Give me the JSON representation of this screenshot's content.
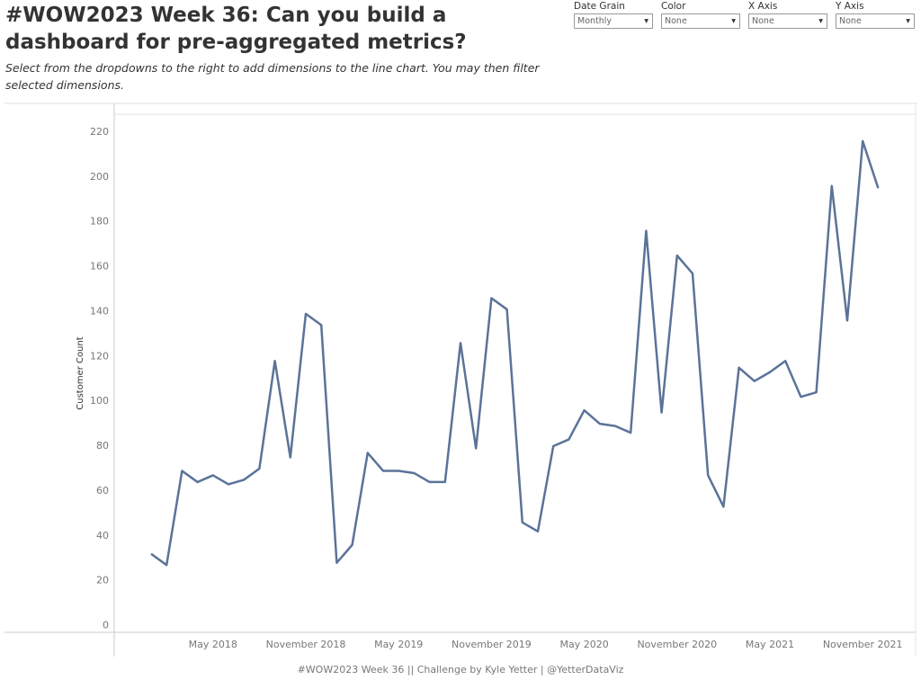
{
  "header": {
    "title": "#WOW2023 Week 36: Can you build a dashboard for pre-aggregated metrics?",
    "subtitle": "Select from the dropdowns to the right to add dimensions to the line chart. You may then filter selected dimensions."
  },
  "controls": [
    {
      "label": "Date Grain",
      "value": "Monthly"
    },
    {
      "label": "Color",
      "value": "None"
    },
    {
      "label": "X Axis",
      "value": "None"
    },
    {
      "label": "Y Axis",
      "value": "None"
    }
  ],
  "chart_data": {
    "type": "line",
    "y_label": "Customer Count",
    "color": "#5b7398",
    "categories": [
      null,
      null,
      null,
      null,
      "May 2018",
      null,
      null,
      null,
      null,
      null,
      "November 2018",
      null,
      null,
      null,
      null,
      null,
      "May 2019",
      null,
      null,
      null,
      null,
      null,
      "November 2019",
      null,
      null,
      null,
      null,
      null,
      "May 2020",
      null,
      null,
      null,
      null,
      null,
      "November 2020",
      null,
      null,
      null,
      null,
      null,
      "May 2021",
      null,
      null,
      null,
      null,
      null,
      "November 2021",
      null
    ],
    "values": [
      32,
      27,
      69,
      64,
      67,
      63,
      65,
      70,
      118,
      75,
      139,
      134,
      28,
      36,
      77,
      69,
      69,
      68,
      64,
      64,
      126,
      79,
      146,
      141,
      46,
      42,
      80,
      83,
      96,
      90,
      89,
      86,
      176,
      95,
      165,
      157,
      67,
      53,
      115,
      109,
      113,
      118,
      102,
      104,
      196,
      136,
      216,
      195
    ],
    "ylim": [
      -3,
      228
    ],
    "yticks": [
      0,
      20,
      40,
      60,
      80,
      100,
      120,
      140,
      160,
      180,
      200,
      220
    ],
    "grid": false
  },
  "footer": "#WOW2023 Week 36  ||  Challenge by Kyle Yetter | @YetterDataViz"
}
